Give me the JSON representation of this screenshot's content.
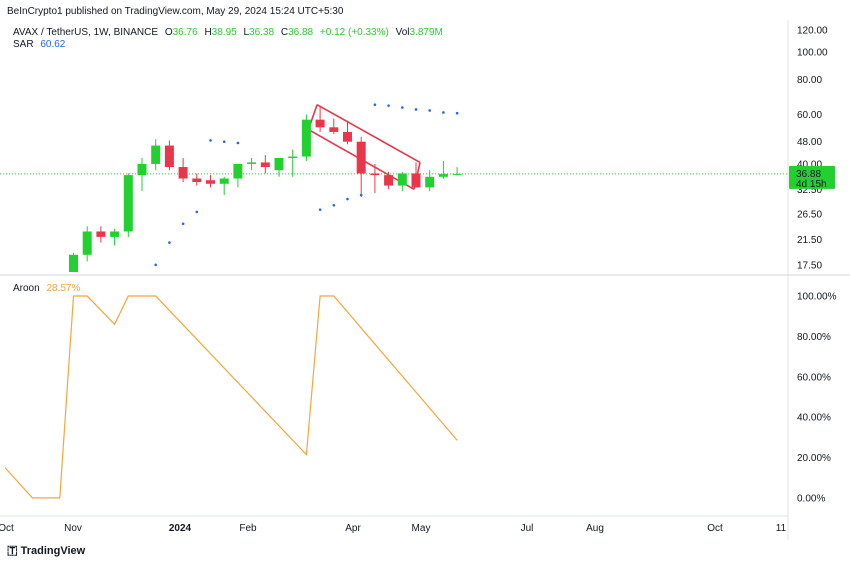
{
  "header": {
    "published": "BeInCrypto1 published on TradingView.com, May 29, 2024 15:24 UTC+5:30"
  },
  "legend": {
    "symbol": "AVAX / TetherUS, 1W, BINANCE",
    "open_label": "O",
    "open": "36.76",
    "high_label": "H",
    "high": "38.95",
    "low_label": "L",
    "low": "36.38",
    "close_label": "C",
    "close": "36.88",
    "change": "+0.12 (+0.33%)",
    "vol_label": "Vol",
    "vol": "3.879M",
    "sar_label": "SAR",
    "sar": "60.62"
  },
  "aroon": {
    "label": "Aroon",
    "value": "28.57%"
  },
  "footer": {
    "brand": "TradingView"
  },
  "colors": {
    "up": "#22d12f",
    "down": "#e8374a",
    "sar": "#2962ff",
    "aroon": "#f7a53b",
    "price_line": "#1fcf3b",
    "channel": "#e8374a"
  },
  "chart_data": [
    {
      "type": "candlestick",
      "title": "AVAX / TetherUS, 1W, BINANCE",
      "y_ticks": [
        "120.00",
        "100.00",
        "80.00",
        "60.00",
        "48.00",
        "40.00",
        "32.50",
        "26.50",
        "21.50",
        "17.50"
      ],
      "x_ticks": [
        "Oct",
        "Nov",
        "2024",
        "Feb",
        "Apr",
        "May",
        "Jul",
        "Aug",
        "Oct",
        "11"
      ],
      "scale": "log",
      "ylim": [
        16.5,
        128
      ],
      "current_price": {
        "price": "36.88",
        "countdown": "4d 15h"
      },
      "candles": [
        {
          "o": 16.5,
          "h": 19.3,
          "l": 16.5,
          "c": 19.0
        },
        {
          "o": 19.0,
          "h": 24.0,
          "l": 18.0,
          "c": 23.0
        },
        {
          "o": 23.0,
          "h": 24.0,
          "l": 21.0,
          "c": 22.0
        },
        {
          "o": 22.0,
          "h": 23.5,
          "l": 20.5,
          "c": 23.0
        },
        {
          "o": 23.0,
          "h": 37.0,
          "l": 22.0,
          "c": 36.5
        },
        {
          "o": 36.5,
          "h": 42.0,
          "l": 32.0,
          "c": 40.0
        },
        {
          "o": 40.0,
          "h": 49.0,
          "l": 38.0,
          "c": 46.5
        },
        {
          "o": 46.5,
          "h": 48.5,
          "l": 38.0,
          "c": 39.0
        },
        {
          "o": 39.0,
          "h": 42.0,
          "l": 34.5,
          "c": 35.5
        },
        {
          "o": 35.5,
          "h": 37.0,
          "l": 33.5,
          "c": 34.5
        },
        {
          "o": 35.0,
          "h": 36.5,
          "l": 33.0,
          "c": 34.0
        },
        {
          "o": 34.0,
          "h": 36.0,
          "l": 31.0,
          "c": 35.5
        },
        {
          "o": 35.5,
          "h": 40.0,
          "l": 33.0,
          "c": 40.0
        },
        {
          "o": 40.0,
          "h": 42.0,
          "l": 38.0,
          "c": 40.5
        },
        {
          "o": 40.5,
          "h": 43.0,
          "l": 37.0,
          "c": 39.0
        },
        {
          "o": 38.0,
          "h": 42.0,
          "l": 36.0,
          "c": 42.0
        },
        {
          "o": 42.0,
          "h": 45.0,
          "l": 36.0,
          "c": 42.5
        },
        {
          "o": 42.5,
          "h": 60.0,
          "l": 41.0,
          "c": 57.5
        },
        {
          "o": 57.5,
          "h": 64.0,
          "l": 52.0,
          "c": 54.0
        },
        {
          "o": 54.0,
          "h": 58.0,
          "l": 51.0,
          "c": 52.0
        },
        {
          "o": 52.0,
          "h": 57.0,
          "l": 47.0,
          "c": 48.0
        },
        {
          "o": 48.0,
          "h": 50.0,
          "l": 30.5,
          "c": 37.0
        },
        {
          "o": 37.0,
          "h": 40.0,
          "l": 31.5,
          "c": 36.5
        },
        {
          "o": 36.5,
          "h": 37.5,
          "l": 32.5,
          "c": 33.5
        },
        {
          "o": 33.5,
          "h": 37.5,
          "l": 32.0,
          "c": 37.0
        },
        {
          "o": 37.0,
          "h": 40.5,
          "l": 33.0,
          "c": 33.0
        },
        {
          "o": 33.0,
          "h": 38.0,
          "l": 32.0,
          "c": 36.0
        },
        {
          "o": 36.0,
          "h": 41.0,
          "l": 35.5,
          "c": 36.8
        },
        {
          "o": 36.76,
          "h": 38.95,
          "l": 36.38,
          "c": 36.88
        }
      ],
      "sar": [
        {
          "i": 6,
          "v": 17.5
        },
        {
          "i": 7,
          "v": 21.0
        },
        {
          "i": 8,
          "v": 24.5
        },
        {
          "i": 9,
          "v": 27.0
        },
        {
          "i": 10,
          "v": 48.5
        },
        {
          "i": 11,
          "v": 48.0
        },
        {
          "i": 12,
          "v": 47.5
        },
        {
          "i": 18,
          "v": 27.5
        },
        {
          "i": 19,
          "v": 28.5
        },
        {
          "i": 20,
          "v": 30.0
        },
        {
          "i": 21,
          "v": 31.0
        },
        {
          "i": 22,
          "v": 65.0
        },
        {
          "i": 23,
          "v": 64.5
        },
        {
          "i": 24,
          "v": 63.5
        },
        {
          "i": 25,
          "v": 62.5
        },
        {
          "i": 26,
          "v": 62.0
        },
        {
          "i": 27,
          "v": 61.0
        },
        {
          "i": 28,
          "v": 60.62
        }
      ]
    },
    {
      "type": "line",
      "title": "Aroon",
      "y_ticks": [
        "100.00%",
        "80.00%",
        "60.00%",
        "40.00%",
        "20.00%",
        "0.00%"
      ],
      "ylim": [
        -7,
        102
      ],
      "series": [
        {
          "name": "Aroon",
          "points": [
            {
              "i": -5,
              "v": 15
            },
            {
              "i": -3,
              "v": 0
            },
            {
              "i": -1,
              "v": 0
            },
            {
              "i": 0,
              "v": 100
            },
            {
              "i": 1,
              "v": 100
            },
            {
              "i": 3,
              "v": 86
            },
            {
              "i": 4,
              "v": 100
            },
            {
              "i": 6,
              "v": 100
            },
            {
              "i": 17,
              "v": 21.43
            },
            {
              "i": 18,
              "v": 100
            },
            {
              "i": 19,
              "v": 100
            },
            {
              "i": 28,
              "v": 28.57
            }
          ]
        }
      ]
    }
  ]
}
